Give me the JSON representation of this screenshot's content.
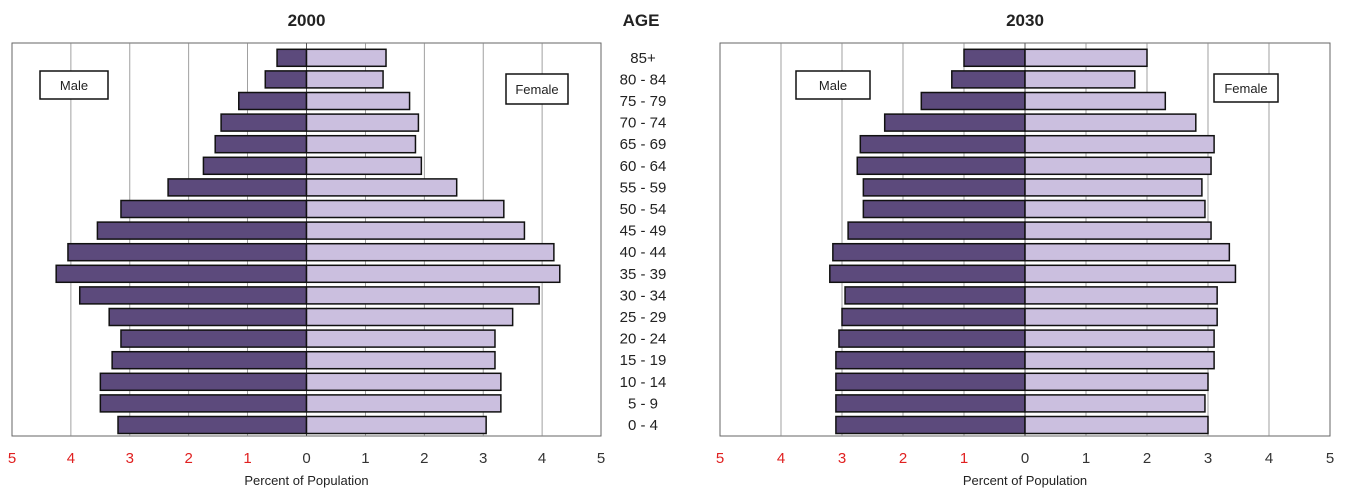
{
  "age_header": "AGE",
  "colors": {
    "male_bar": "#5c4a7c",
    "female_bar": "#cbbfdf",
    "bar_outline": "#111111",
    "male_tick": "#e02020",
    "female_tick": "#333333",
    "grid": "#888888"
  },
  "chart_data": [
    {
      "type": "bar",
      "orientation": "horizontal-pyramid",
      "title": "2000",
      "xlabel": "Percent of Population",
      "xlim": [
        -5,
        5
      ],
      "xticks": [
        "5",
        "4",
        "3",
        "2",
        "1",
        "0",
        "1",
        "2",
        "3",
        "4",
        "5"
      ],
      "grid": true,
      "legend": {
        "male": "Male",
        "female": "Female"
      },
      "categories": [
        "85+",
        "80 - 84",
        "75 - 79",
        "70 - 74",
        "65 - 69",
        "60 - 64",
        "55 - 59",
        "50 - 54",
        "45 - 49",
        "40 - 44",
        "35 - 39",
        "30 - 34",
        "25 - 29",
        "20 - 24",
        "15 - 19",
        "10 - 14",
        "5 - 9",
        "0 - 4"
      ],
      "series": [
        {
          "name": "Male",
          "values": [
            0.5,
            0.7,
            1.15,
            1.45,
            1.55,
            1.75,
            2.35,
            3.15,
            3.55,
            4.05,
            4.25,
            3.85,
            3.35,
            3.15,
            3.3,
            3.5,
            3.5,
            3.2
          ]
        },
        {
          "name": "Female",
          "values": [
            1.35,
            1.3,
            1.75,
            1.9,
            1.85,
            1.95,
            2.55,
            3.35,
            3.7,
            4.2,
            4.3,
            3.95,
            3.5,
            3.2,
            3.2,
            3.3,
            3.3,
            3.05
          ]
        }
      ]
    },
    {
      "type": "bar",
      "orientation": "horizontal-pyramid",
      "title": "2030",
      "xlabel": "Percent of Population",
      "xlim": [
        -5,
        5
      ],
      "xticks": [
        "5",
        "4",
        "3",
        "2",
        "1",
        "0",
        "1",
        "2",
        "3",
        "4",
        "5"
      ],
      "grid": true,
      "legend": {
        "male": "Male",
        "female": "Female"
      },
      "categories": [
        "85+",
        "80 - 84",
        "75 - 79",
        "70 - 74",
        "65 - 69",
        "60 - 64",
        "55 - 59",
        "50 - 54",
        "45 - 49",
        "40 - 44",
        "35 - 39",
        "30 - 34",
        "25 - 29",
        "20 - 24",
        "15 - 19",
        "10 - 14",
        "5 - 9",
        "0 - 4"
      ],
      "series": [
        {
          "name": "Male",
          "values": [
            1.0,
            1.2,
            1.7,
            2.3,
            2.7,
            2.75,
            2.65,
            2.65,
            2.9,
            3.15,
            3.2,
            2.95,
            3.0,
            3.05,
            3.1,
            3.1,
            3.1,
            3.1
          ]
        },
        {
          "name": "Female",
          "values": [
            2.0,
            1.8,
            2.3,
            2.8,
            3.1,
            3.05,
            2.9,
            2.95,
            3.05,
            3.35,
            3.45,
            3.15,
            3.15,
            3.1,
            3.1,
            3.0,
            2.95,
            3.0
          ]
        }
      ]
    }
  ]
}
